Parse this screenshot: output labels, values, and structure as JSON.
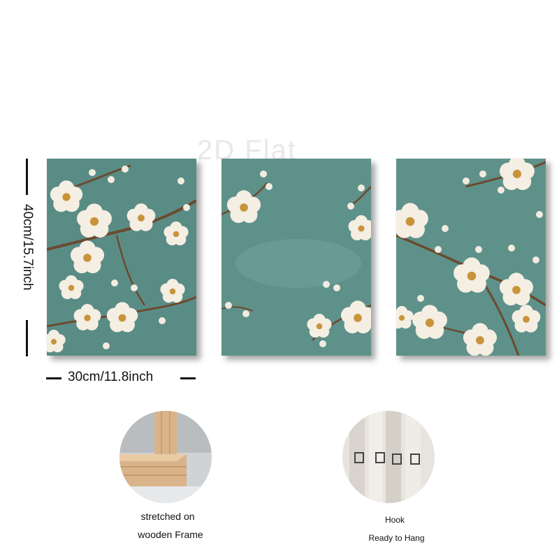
{
  "watermark": "2D Flat",
  "dimensions": {
    "height_label": "40cm/15.7inch",
    "width_label": "30cm/11.8inch"
  },
  "features": [
    {
      "caption_line1": "stretched on",
      "caption_line2": "wooden Frame"
    },
    {
      "caption_line1": "Hook",
      "caption_line2": "Ready to Hang"
    }
  ],
  "colors": {
    "canvas_teal": "#5e918a",
    "blossom_petal": "#f4eee3",
    "blossom_center": "#c9933a",
    "branch": "#6b4a2e",
    "wood": "#d9b48a"
  }
}
